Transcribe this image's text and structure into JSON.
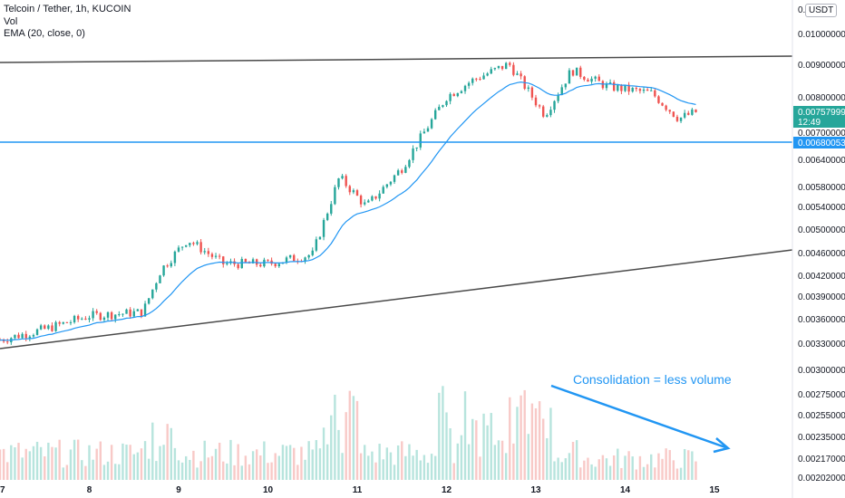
{
  "header": {
    "title": "Telcoin / Tether, 1h, KUCOIN",
    "vol_label": "Vol",
    "ema_label": "EMA (20, close, 0)"
  },
  "currency_badge": "USDT",
  "annotation": "Consolidation = less volume",
  "colors": {
    "up": "#26a69a",
    "down": "#ef5350",
    "ema": "#2196f3",
    "support": "#2196f3",
    "trendline": "#4a4a4a",
    "vol_up": "#b7e4dd",
    "vol_down": "#f8c9c7"
  },
  "price_tags": {
    "current": {
      "price": "0.00757999",
      "countdown": "12:49"
    },
    "support": {
      "price": "0.00680053"
    }
  },
  "chart_data": {
    "type": "candlestick",
    "title": "Telcoin / Tether, 1h, KUCOIN",
    "x_ticks": [
      "7",
      "8",
      "9",
      "10",
      "11",
      "12",
      "13",
      "14",
      "15"
    ],
    "y_ticks": [
      "0.01000000",
      "0.00900000",
      "0.00800000",
      "0.00700000",
      "0.00640000",
      "0.00580000",
      "0.00540000",
      "0.00500000",
      "0.00460000",
      "0.00420000",
      "0.00390000",
      "0.00360000",
      "0.00330000",
      "0.00300000",
      "0.00275000",
      "0.00255000",
      "0.00235000",
      "0.00217000",
      "0.00202000"
    ],
    "y_top_partial": "0.01",
    "y_scale": "log",
    "x_range_days": [
      7,
      15
    ],
    "ohlc_anchor_points": [
      {
        "day": 7.0,
        "close": 0.00335
      },
      {
        "day": 7.5,
        "close": 0.00348
      },
      {
        "day": 8.0,
        "close": 0.00365
      },
      {
        "day": 8.6,
        "close": 0.0037
      },
      {
        "day": 8.8,
        "close": 0.0043
      },
      {
        "day": 9.1,
        "close": 0.0048
      },
      {
        "day": 9.5,
        "close": 0.0044
      },
      {
        "day": 10.0,
        "close": 0.0044
      },
      {
        "day": 10.5,
        "close": 0.00455
      },
      {
        "day": 10.8,
        "close": 0.006
      },
      {
        "day": 11.1,
        "close": 0.0054
      },
      {
        "day": 11.5,
        "close": 0.0062
      },
      {
        "day": 12.0,
        "close": 0.008
      },
      {
        "day": 12.3,
        "close": 0.0085
      },
      {
        "day": 12.7,
        "close": 0.009
      },
      {
        "day": 13.1,
        "close": 0.0075
      },
      {
        "day": 13.4,
        "close": 0.0088
      },
      {
        "day": 13.8,
        "close": 0.0083
      },
      {
        "day": 14.3,
        "close": 0.0081
      },
      {
        "day": 14.6,
        "close": 0.0074
      },
      {
        "day": 14.8,
        "close": 0.00758
      }
    ],
    "support_level": 0.00680053,
    "last_price": 0.00757999,
    "volume": "decreasing during consolidation"
  }
}
